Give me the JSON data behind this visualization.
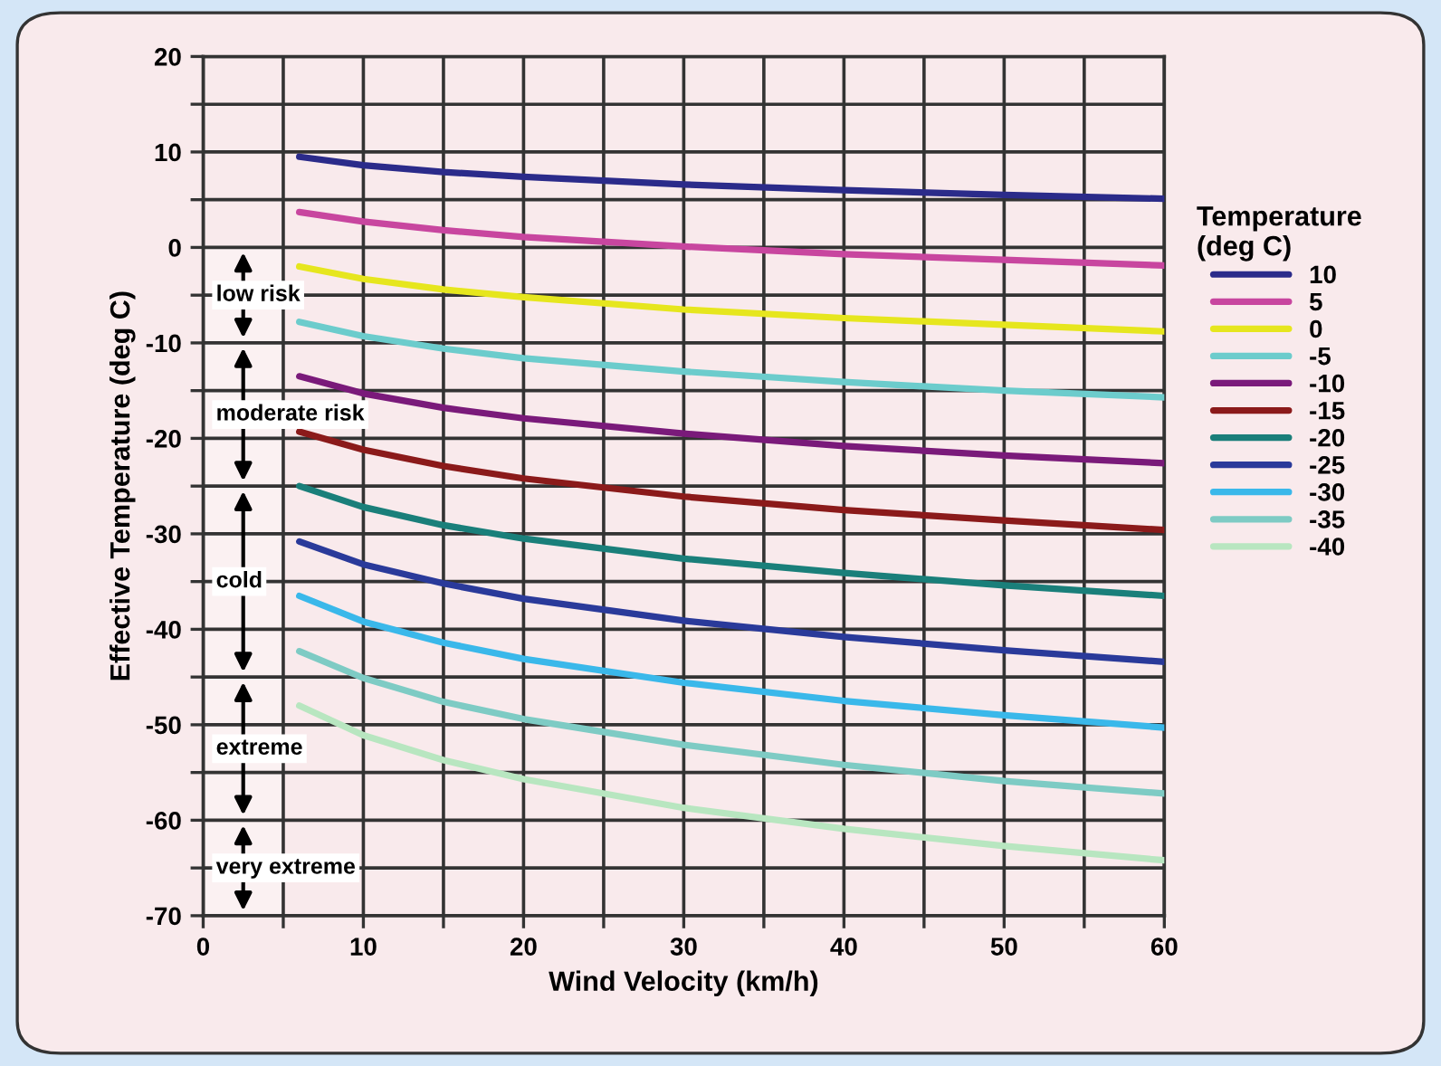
{
  "chart_data": {
    "type": "line",
    "xlabel": "Wind Velocity (km/h)",
    "ylabel": "Effective Temperature (deg C)",
    "legend_title": "Temperature\n(deg C)",
    "x": [
      6,
      10,
      15,
      20,
      30,
      40,
      50,
      60
    ],
    "series": [
      {
        "name": "10",
        "color": "#2b2b8a",
        "values": [
          9.5,
          8.6,
          7.9,
          7.4,
          6.6,
          6.0,
          5.5,
          5.1
        ]
      },
      {
        "name": "5",
        "color": "#c8469f",
        "values": [
          3.7,
          2.7,
          1.8,
          1.1,
          0.1,
          -0.7,
          -1.3,
          -1.9
        ]
      },
      {
        "name": "0",
        "color": "#e6e61e",
        "values": [
          -2.0,
          -3.3,
          -4.4,
          -5.2,
          -6.5,
          -7.4,
          -8.1,
          -8.8
        ]
      },
      {
        "name": "-5",
        "color": "#6ccccc",
        "values": [
          -7.8,
          -9.3,
          -10.6,
          -11.6,
          -13.0,
          -14.1,
          -15.0,
          -15.7
        ]
      },
      {
        "name": "-10",
        "color": "#7a1a7a",
        "values": [
          -13.5,
          -15.3,
          -16.8,
          -17.9,
          -19.5,
          -20.8,
          -21.8,
          -22.6
        ]
      },
      {
        "name": "-15",
        "color": "#8b1a1a",
        "values": [
          -19.3,
          -21.2,
          -22.9,
          -24.2,
          -26.1,
          -27.5,
          -28.6,
          -29.6
        ]
      },
      {
        "name": "-20",
        "color": "#1a7f7a",
        "values": [
          -25.0,
          -27.2,
          -29.1,
          -30.5,
          -32.6,
          -34.1,
          -35.4,
          -36.5
        ]
      },
      {
        "name": "-25",
        "color": "#2a3a9a",
        "values": [
          -30.8,
          -33.2,
          -35.2,
          -36.8,
          -39.1,
          -40.8,
          -42.2,
          -43.4
        ]
      },
      {
        "name": "-30",
        "color": "#3ab8ea",
        "values": [
          -36.5,
          -39.2,
          -41.4,
          -43.1,
          -45.6,
          -47.5,
          -49.0,
          -50.3
        ]
      },
      {
        "name": "-35",
        "color": "#7ecbc4",
        "values": [
          -42.3,
          -45.1,
          -47.6,
          -49.4,
          -52.1,
          -54.2,
          -55.9,
          -57.2
        ]
      },
      {
        "name": "-40",
        "color": "#b8e6c0",
        "values": [
          -48.0,
          -51.1,
          -53.7,
          -55.7,
          -58.7,
          -60.9,
          -62.7,
          -64.2
        ]
      }
    ],
    "xlim": [
      0,
      60
    ],
    "xticks": [
      0,
      {
        "value": 5,
        "label": null
      },
      10,
      {
        "value": 15,
        "label": null
      },
      20,
      {
        "value": 25,
        "label": null
      },
      30,
      {
        "value": 35,
        "label": null
      },
      40,
      {
        "value": 45,
        "label": null
      },
      50,
      {
        "value": 55,
        "label": null
      },
      60
    ],
    "ylim": [
      -70,
      20
    ],
    "yticks": [
      -70,
      {
        "value": -65,
        "label": null
      },
      -60,
      {
        "value": -55,
        "label": null
      },
      -50,
      {
        "value": -45,
        "label": null
      },
      -40,
      {
        "value": -35,
        "label": null
      },
      -30,
      {
        "value": -25,
        "label": null
      },
      -20,
      {
        "value": -15,
        "label": null
      },
      -10,
      {
        "value": -5,
        "label": null
      },
      0,
      {
        "value": 5,
        "label": null
      },
      10,
      {
        "value": 15,
        "label": null
      },
      20
    ],
    "bands": [
      {
        "axis": "y",
        "from": 0,
        "to": -10,
        "label": "low risk"
      },
      {
        "axis": "y",
        "from": -10,
        "to": -25,
        "label": "moderate risk"
      },
      {
        "axis": "y",
        "from": -25,
        "to": -45,
        "label": "cold"
      },
      {
        "axis": "y",
        "from": -45,
        "to": -60,
        "label": "extreme"
      },
      {
        "axis": "y",
        "from": -60,
        "to": -70,
        "label": "very extreme"
      }
    ],
    "grid": true,
    "legend": "right",
    "marker": "none",
    "line_style": "solid"
  }
}
